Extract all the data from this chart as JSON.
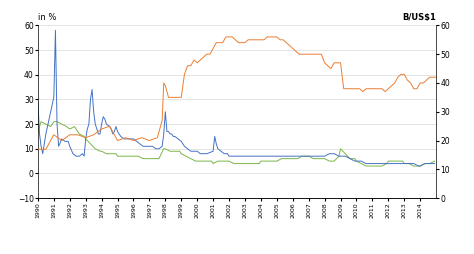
{
  "title_left": "in %",
  "title_right": "B/US$1",
  "ylim_left": [
    -10,
    60
  ],
  "ylim_right": [
    0,
    60
  ],
  "yticks_left": [
    -10,
    0,
    10,
    20,
    30,
    40,
    50,
    60
  ],
  "yticks_right": [
    0,
    10,
    20,
    30,
    40,
    50,
    60
  ],
  "color_inflation": "#7ab648",
  "color_repo": "#4472c4",
  "color_exchange": "#ed7d31",
  "bg_color": "#f2f2f2",
  "inflation_data": [
    [
      1990.0,
      17
    ],
    [
      1990.2,
      21
    ],
    [
      1990.5,
      20
    ],
    [
      1990.8,
      19
    ],
    [
      1991.0,
      21
    ],
    [
      1991.2,
      21
    ],
    [
      1991.5,
      20
    ],
    [
      1991.8,
      19
    ],
    [
      1992.0,
      18
    ],
    [
      1992.3,
      19
    ],
    [
      1992.6,
      16
    ],
    [
      1992.9,
      15
    ],
    [
      1993.0,
      14
    ],
    [
      1993.3,
      12
    ],
    [
      1993.6,
      10
    ],
    [
      1993.9,
      9
    ],
    [
      1994.0,
      9
    ],
    [
      1994.3,
      8
    ],
    [
      1994.6,
      8
    ],
    [
      1994.9,
      8
    ],
    [
      1995.0,
      7
    ],
    [
      1995.3,
      7
    ],
    [
      1995.6,
      7
    ],
    [
      1995.9,
      7
    ],
    [
      1996.0,
      7
    ],
    [
      1996.3,
      7
    ],
    [
      1996.6,
      6
    ],
    [
      1996.9,
      6
    ],
    [
      1997.0,
      6
    ],
    [
      1997.3,
      6
    ],
    [
      1997.6,
      6
    ],
    [
      1997.9,
      10
    ],
    [
      1998.0,
      10
    ],
    [
      1998.3,
      9
    ],
    [
      1998.6,
      9
    ],
    [
      1998.9,
      9
    ],
    [
      1999.0,
      8
    ],
    [
      1999.3,
      7
    ],
    [
      1999.6,
      6
    ],
    [
      1999.9,
      5
    ],
    [
      2000.0,
      5
    ],
    [
      2000.3,
      5
    ],
    [
      2000.6,
      5
    ],
    [
      2000.9,
      5
    ],
    [
      2001.0,
      4
    ],
    [
      2001.3,
      5
    ],
    [
      2001.6,
      5
    ],
    [
      2001.9,
      5
    ],
    [
      2002.0,
      5
    ],
    [
      2002.3,
      4
    ],
    [
      2002.6,
      4
    ],
    [
      2002.9,
      4
    ],
    [
      2003.0,
      4
    ],
    [
      2003.3,
      4
    ],
    [
      2003.6,
      4
    ],
    [
      2003.9,
      4
    ],
    [
      2004.0,
      5
    ],
    [
      2004.3,
      5
    ],
    [
      2004.6,
      5
    ],
    [
      2004.9,
      5
    ],
    [
      2005.0,
      5
    ],
    [
      2005.3,
      6
    ],
    [
      2005.6,
      6
    ],
    [
      2005.9,
      6
    ],
    [
      2006.0,
      6
    ],
    [
      2006.3,
      6
    ],
    [
      2006.6,
      7
    ],
    [
      2006.9,
      7
    ],
    [
      2007.0,
      7
    ],
    [
      2007.3,
      6
    ],
    [
      2007.6,
      6
    ],
    [
      2007.9,
      6
    ],
    [
      2008.0,
      6
    ],
    [
      2008.3,
      5
    ],
    [
      2008.6,
      5
    ],
    [
      2008.9,
      7
    ],
    [
      2009.0,
      10
    ],
    [
      2009.3,
      8
    ],
    [
      2009.6,
      6
    ],
    [
      2009.9,
      6
    ],
    [
      2010.0,
      5
    ],
    [
      2010.3,
      4
    ],
    [
      2010.6,
      3
    ],
    [
      2010.9,
      3
    ],
    [
      2011.0,
      3
    ],
    [
      2011.3,
      3
    ],
    [
      2011.6,
      3
    ],
    [
      2011.9,
      4
    ],
    [
      2012.0,
      5
    ],
    [
      2012.3,
      5
    ],
    [
      2012.6,
      5
    ],
    [
      2012.9,
      5
    ],
    [
      2013.0,
      4
    ],
    [
      2013.3,
      4
    ],
    [
      2013.6,
      3
    ],
    [
      2013.9,
      3
    ],
    [
      2014.0,
      3
    ],
    [
      2014.3,
      4
    ],
    [
      2014.6,
      4
    ],
    [
      2014.9,
      5
    ]
  ],
  "repo_data": [
    [
      1990.0,
      29
    ],
    [
      1990.1,
      16
    ],
    [
      1990.2,
      11
    ],
    [
      1990.3,
      8
    ],
    [
      1990.5,
      16
    ],
    [
      1990.7,
      22
    ],
    [
      1990.9,
      28
    ],
    [
      1991.0,
      31
    ],
    [
      1991.1,
      58
    ],
    [
      1991.2,
      20
    ],
    [
      1991.3,
      11
    ],
    [
      1991.5,
      14
    ],
    [
      1991.7,
      13
    ],
    [
      1991.9,
      13
    ],
    [
      1992.0,
      11
    ],
    [
      1992.2,
      8
    ],
    [
      1992.4,
      7
    ],
    [
      1992.6,
      7
    ],
    [
      1992.8,
      8
    ],
    [
      1992.9,
      7
    ],
    [
      1993.0,
      14
    ],
    [
      1993.1,
      18
    ],
    [
      1993.2,
      20
    ],
    [
      1993.3,
      30
    ],
    [
      1993.4,
      34
    ],
    [
      1993.5,
      25
    ],
    [
      1993.6,
      20
    ],
    [
      1993.7,
      18
    ],
    [
      1993.8,
      16
    ],
    [
      1993.9,
      16
    ],
    [
      1994.0,
      20
    ],
    [
      1994.1,
      23
    ],
    [
      1994.2,
      22
    ],
    [
      1994.3,
      20
    ],
    [
      1994.5,
      19
    ],
    [
      1994.6,
      18
    ],
    [
      1994.7,
      16
    ],
    [
      1994.8,
      17
    ],
    [
      1994.9,
      19
    ],
    [
      1995.0,
      17
    ],
    [
      1995.2,
      15
    ],
    [
      1995.4,
      14
    ],
    [
      1995.6,
      14
    ],
    [
      1995.8,
      14
    ],
    [
      1996.0,
      14
    ],
    [
      1996.2,
      13
    ],
    [
      1996.4,
      12
    ],
    [
      1996.6,
      11
    ],
    [
      1996.8,
      11
    ],
    [
      1997.0,
      11
    ],
    [
      1997.2,
      11
    ],
    [
      1997.4,
      10
    ],
    [
      1997.6,
      10
    ],
    [
      1997.8,
      11
    ],
    [
      1997.9,
      16
    ],
    [
      1998.0,
      25
    ],
    [
      1998.1,
      17
    ],
    [
      1998.2,
      17
    ],
    [
      1998.3,
      16
    ],
    [
      1998.4,
      16
    ],
    [
      1998.5,
      15
    ],
    [
      1998.6,
      15
    ],
    [
      1998.8,
      14
    ],
    [
      1999.0,
      13
    ],
    [
      1999.2,
      11
    ],
    [
      1999.4,
      10
    ],
    [
      1999.6,
      9
    ],
    [
      1999.8,
      9
    ],
    [
      2000.0,
      9
    ],
    [
      2000.2,
      8
    ],
    [
      2000.4,
      8
    ],
    [
      2000.6,
      8
    ],
    [
      2001.0,
      9
    ],
    [
      2001.1,
      15
    ],
    [
      2001.2,
      12
    ],
    [
      2001.3,
      10
    ],
    [
      2001.5,
      9
    ],
    [
      2001.7,
      8
    ],
    [
      2001.9,
      8
    ],
    [
      2002.0,
      7
    ],
    [
      2002.3,
      7
    ],
    [
      2002.6,
      7
    ],
    [
      2002.9,
      7
    ],
    [
      2003.0,
      7
    ],
    [
      2003.3,
      7
    ],
    [
      2003.6,
      7
    ],
    [
      2003.9,
      7
    ],
    [
      2004.0,
      7
    ],
    [
      2004.3,
      7
    ],
    [
      2004.6,
      7
    ],
    [
      2004.9,
      7
    ],
    [
      2005.0,
      7
    ],
    [
      2005.3,
      7
    ],
    [
      2005.6,
      7
    ],
    [
      2005.9,
      7
    ],
    [
      2006.0,
      7
    ],
    [
      2006.3,
      7
    ],
    [
      2006.6,
      7
    ],
    [
      2006.9,
      7
    ],
    [
      2007.0,
      7
    ],
    [
      2007.3,
      7
    ],
    [
      2007.6,
      7
    ],
    [
      2007.9,
      7
    ],
    [
      2008.0,
      7
    ],
    [
      2008.3,
      8
    ],
    [
      2008.6,
      8
    ],
    [
      2008.9,
      7
    ],
    [
      2009.0,
      7
    ],
    [
      2009.3,
      7
    ],
    [
      2009.6,
      6
    ],
    [
      2009.9,
      5
    ],
    [
      2010.0,
      5
    ],
    [
      2010.3,
      5
    ],
    [
      2010.6,
      4
    ],
    [
      2010.9,
      4
    ],
    [
      2011.0,
      4
    ],
    [
      2011.3,
      4
    ],
    [
      2011.6,
      4
    ],
    [
      2011.9,
      4
    ],
    [
      2012.0,
      4
    ],
    [
      2012.3,
      4
    ],
    [
      2012.6,
      4
    ],
    [
      2012.9,
      4
    ],
    [
      2013.0,
      4
    ],
    [
      2013.3,
      4
    ],
    [
      2013.6,
      4
    ],
    [
      2013.9,
      3
    ],
    [
      2014.0,
      3
    ],
    [
      2014.3,
      4
    ],
    [
      2014.6,
      4
    ],
    [
      2014.9,
      4
    ]
  ],
  "exchange_data": [
    [
      1990.0,
      17
    ],
    [
      1990.5,
      17
    ],
    [
      1991.0,
      22
    ],
    [
      1991.5,
      20
    ],
    [
      1992.0,
      22
    ],
    [
      1992.5,
      22
    ],
    [
      1993.0,
      21
    ],
    [
      1993.5,
      22
    ],
    [
      1994.0,
      24
    ],
    [
      1994.5,
      25
    ],
    [
      1995.0,
      20
    ],
    [
      1995.5,
      21
    ],
    [
      1996.0,
      20
    ],
    [
      1996.5,
      21
    ],
    [
      1997.0,
      20
    ],
    [
      1997.5,
      21
    ],
    [
      1997.8,
      27
    ],
    [
      1997.9,
      40
    ],
    [
      1998.0,
      39
    ],
    [
      1998.2,
      35
    ],
    [
      1998.4,
      35
    ],
    [
      1998.6,
      35
    ],
    [
      1998.8,
      35
    ],
    [
      1999.0,
      35
    ],
    [
      1999.2,
      43
    ],
    [
      1999.4,
      46
    ],
    [
      1999.6,
      46
    ],
    [
      1999.8,
      48
    ],
    [
      2000.0,
      47
    ],
    [
      2000.2,
      48
    ],
    [
      2000.4,
      49
    ],
    [
      2000.6,
      50
    ],
    [
      2000.8,
      50
    ],
    [
      2001.0,
      52
    ],
    [
      2001.2,
      54
    ],
    [
      2001.4,
      54
    ],
    [
      2001.6,
      54
    ],
    [
      2001.8,
      56
    ],
    [
      2002.0,
      56
    ],
    [
      2002.2,
      56
    ],
    [
      2002.4,
      55
    ],
    [
      2002.6,
      54
    ],
    [
      2002.8,
      54
    ],
    [
      2003.0,
      54
    ],
    [
      2003.2,
      55
    ],
    [
      2003.4,
      55
    ],
    [
      2003.6,
      55
    ],
    [
      2003.8,
      55
    ],
    [
      2004.0,
      55
    ],
    [
      2004.2,
      55
    ],
    [
      2004.4,
      56
    ],
    [
      2004.6,
      56
    ],
    [
      2004.8,
      56
    ],
    [
      2005.0,
      56
    ],
    [
      2005.2,
      55
    ],
    [
      2005.4,
      55
    ],
    [
      2005.6,
      54
    ],
    [
      2005.8,
      53
    ],
    [
      2006.0,
      52
    ],
    [
      2006.2,
      51
    ],
    [
      2006.4,
      50
    ],
    [
      2006.6,
      50
    ],
    [
      2006.8,
      50
    ],
    [
      2007.0,
      50
    ],
    [
      2007.2,
      50
    ],
    [
      2007.4,
      50
    ],
    [
      2007.6,
      50
    ],
    [
      2007.8,
      50
    ],
    [
      2008.0,
      47
    ],
    [
      2008.2,
      46
    ],
    [
      2008.4,
      45
    ],
    [
      2008.6,
      47
    ],
    [
      2008.8,
      47
    ],
    [
      2009.0,
      47
    ],
    [
      2009.2,
      38
    ],
    [
      2009.4,
      38
    ],
    [
      2009.6,
      38
    ],
    [
      2009.8,
      38
    ],
    [
      2010.0,
      38
    ],
    [
      2010.2,
      38
    ],
    [
      2010.4,
      37
    ],
    [
      2010.6,
      38
    ],
    [
      2010.8,
      38
    ],
    [
      2011.0,
      38
    ],
    [
      2011.2,
      38
    ],
    [
      2011.4,
      38
    ],
    [
      2011.6,
      38
    ],
    [
      2011.8,
      37
    ],
    [
      2012.0,
      38
    ],
    [
      2012.2,
      39
    ],
    [
      2012.4,
      40
    ],
    [
      2012.6,
      42
    ],
    [
      2012.8,
      43
    ],
    [
      2013.0,
      43
    ],
    [
      2013.2,
      41
    ],
    [
      2013.4,
      40
    ],
    [
      2013.6,
      38
    ],
    [
      2013.8,
      38
    ],
    [
      2014.0,
      40
    ],
    [
      2014.2,
      40
    ],
    [
      2014.4,
      41
    ],
    [
      2014.6,
      42
    ],
    [
      2014.8,
      42
    ],
    [
      2015.0,
      42
    ]
  ]
}
